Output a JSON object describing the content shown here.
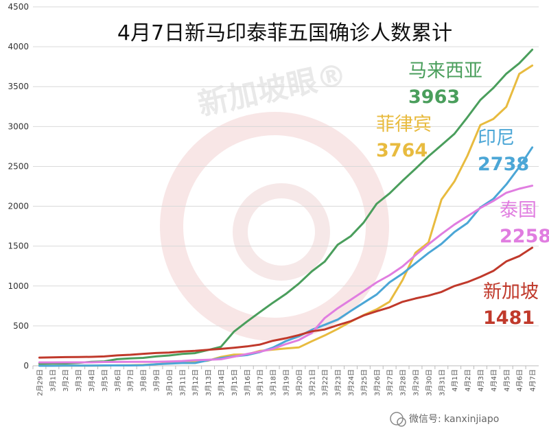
{
  "chart_data": {
    "type": "line",
    "title": "4月7日新马印泰菲五国确诊人数累计",
    "ylim": [
      0,
      4500
    ],
    "yticks": [
      0,
      500,
      1000,
      1500,
      2000,
      2500,
      3000,
      3500,
      4000,
      4500
    ],
    "grid": true,
    "categories": [
      "2月29日",
      "3月1日",
      "3月2日",
      "3月3日",
      "3月4日",
      "3月5日",
      "3月6日",
      "3月7日",
      "3月8日",
      "3月9日",
      "3月10日",
      "3月11日",
      "3月12日",
      "3月13日",
      "3月14日",
      "3月15日",
      "3月16日",
      "3月17日",
      "3月18日",
      "3月19日",
      "3月20日",
      "3月21日",
      "3月22日",
      "3月23日",
      "3月24日",
      "3月25日",
      "3月26日",
      "3月27日",
      "3月28日",
      "3月29日",
      "3月30日",
      "3月31日",
      "4月1日",
      "4月2日",
      "4月3日",
      "4月4日",
      "4月5日",
      "4月6日",
      "4月7日"
    ],
    "series": [
      {
        "name": "马来西亚",
        "label_value": "3963",
        "color": "#4a9e5c",
        "values": [
          25,
          29,
          29,
          36,
          50,
          55,
          83,
          93,
          99,
          117,
          129,
          149,
          158,
          197,
          238,
          428,
          553,
          673,
          790,
          900,
          1030,
          1183,
          1306,
          1518,
          1624,
          1796,
          2031,
          2161,
          2320,
          2470,
          2626,
          2766,
          2908,
          3116,
          3333,
          3483,
          3662,
          3793,
          3963
        ]
      },
      {
        "name": "菲律宾",
        "label_value": "3764",
        "color": "#e8bb3f",
        "values": [
          3,
          3,
          3,
          3,
          3,
          3,
          5,
          6,
          10,
          20,
          33,
          49,
          52,
          64,
          111,
          140,
          142,
          187,
          202,
          217,
          230,
          307,
          380,
          462,
          552,
          636,
          707,
          803,
          1075,
          1418,
          1546,
          2084,
          2311,
          2633,
          3018,
          3094,
          3246,
          3660,
          3764
        ]
      },
      {
        "name": "印尼",
        "label_value": "2738",
        "color": "#4ba6d6",
        "values": [
          0,
          0,
          2,
          2,
          2,
          4,
          4,
          4,
          6,
          19,
          27,
          34,
          34,
          69,
          96,
          117,
          134,
          172,
          227,
          309,
          369,
          450,
          514,
          579,
          686,
          790,
          893,
          1046,
          1155,
          1285,
          1414,
          1528,
          1677,
          1790,
          1986,
          2092,
          2273,
          2491,
          2738
        ]
      },
      {
        "name": "泰国",
        "label_value": "2258",
        "color": "#e07de0",
        "values": [
          42,
          42,
          43,
          43,
          43,
          47,
          48,
          50,
          50,
          50,
          53,
          59,
          70,
          75,
          82,
          114,
          147,
          177,
          212,
          272,
          322,
          411,
          599,
          721,
          827,
          934,
          1045,
          1136,
          1245,
          1388,
          1524,
          1651,
          1771,
          1875,
          1978,
          2067,
          2169,
          2220,
          2258
        ]
      },
      {
        "name": "新加坡",
        "label_value": "1481",
        "color": "#c0392b",
        "values": [
          102,
          106,
          108,
          110,
          112,
          117,
          130,
          138,
          150,
          160,
          166,
          178,
          187,
          200,
          212,
          226,
          243,
          266,
          313,
          345,
          385,
          432,
          455,
          509,
          558,
          631,
          683,
          732,
          802,
          844,
          879,
          926,
          1000,
          1049,
          1114,
          1189,
          1309,
          1375,
          1481
        ]
      }
    ]
  },
  "watermark": {
    "text": "新加坡眼®"
  },
  "footer": {
    "wechat": "微信号: kanxinjiapo"
  }
}
